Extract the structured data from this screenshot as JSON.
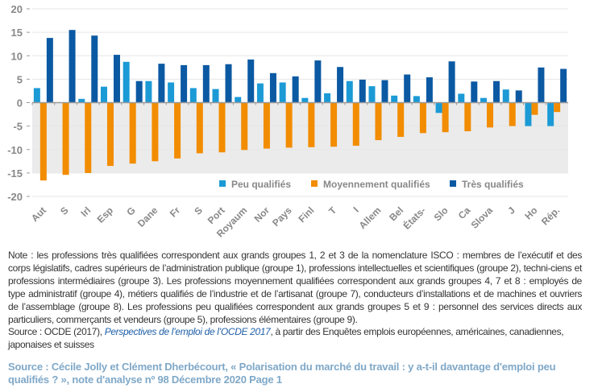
{
  "chart_data": {
    "type": "bar",
    "title": "",
    "xlabel": "",
    "ylabel": "",
    "ylim": [
      -20,
      20
    ],
    "yticks": [
      20,
      15,
      10,
      5,
      0,
      -5,
      -10,
      -15,
      -20
    ],
    "legend_position": "bottom-right",
    "grid": true,
    "categories": [
      "Aut",
      "S",
      "Irl",
      "Esp",
      "G",
      "Dane",
      "Fr",
      "S",
      "Port",
      "Royaum",
      "Nor",
      "Pays",
      "Finl",
      "T",
      "I",
      "Allem",
      "Bel",
      "États-",
      "Slo",
      "Ca",
      "Slova",
      "J",
      "Ho",
      "Rép."
    ],
    "series": [
      {
        "name": "Peu qualifiés",
        "color": "#1b9ad6",
        "values": [
          3.1,
          0,
          0.8,
          3.4,
          8.7,
          4.6,
          4.3,
          3.1,
          2.9,
          1.2,
          4.1,
          4.3,
          1.0,
          2.0,
          4.6,
          3.5,
          1.5,
          1.4,
          -2.2,
          1.9,
          1.0,
          2.8,
          -5.0,
          -5.0
        ]
      },
      {
        "name": "Moyennement qualifiés",
        "color": "#f28c00",
        "values": [
          -16.6,
          -15.4,
          -15.0,
          -13.5,
          -13.0,
          -12.5,
          -11.9,
          -10.8,
          -10.6,
          -10.1,
          -9.8,
          -9.6,
          -9.5,
          -9.4,
          -9.2,
          -8.0,
          -7.3,
          -6.5,
          -6.3,
          -6.1,
          -5.3,
          -5.0,
          -2.6,
          -2.0
        ]
      },
      {
        "name": "Très qualifiés",
        "color": "#0b59a3",
        "values": [
          13.8,
          15.5,
          14.3,
          10.2,
          4.6,
          8.3,
          8.0,
          8.0,
          8.2,
          9.2,
          6.3,
          5.6,
          9.0,
          7.6,
          4.9,
          4.8,
          6.0,
          5.4,
          8.8,
          4.5,
          4.6,
          2.6,
          7.5,
          7.2
        ]
      }
    ]
  },
  "note": "Note : les professions très qualifiées correspondent aux grands groupes 1, 2 et 3 de la nomenclature ISCO : membres de l’exécutif et des corps législatifs, cadres supérieurs de l’administration publique (groupe 1), professions intellectuelles et scientifiques (groupe 2), techni-ciens et professions intermédiaires (groupe 3). Les professions moyennement qualifiées correspondent aux grands groupes 4, 7 et 8 : employés de type administratif (groupe 4), métiers qualifiés de l’industrie et de l’artisanat (groupe 7), conducteurs d’installations et de machines et ouvriers de l’assemblage (groupe 8). Les professions peu qualifiées correspondent aux grands groupes 5 et 9 : personnel des services directs aux particuliers, commerçants et vendeurs (groupe 5), professions élémentaires (groupe 9).",
  "source": {
    "prefix": "Source : OCDE (2017), ",
    "title": "Perspectives de l’emploi de l’OCDE 2017",
    "suffix": ", à partir des Enquêtes emplois européennes, américaines, canadiennes, japonaises et suisses"
  },
  "citation": "Source : Cécile Jolly et Clément Dherbécourt, « Polarisation du marché du travail : y a-t-il davantage  d'emploi  peu qualifiés ? », note d'analyse nº 98 Décembre 2020 Page 1"
}
